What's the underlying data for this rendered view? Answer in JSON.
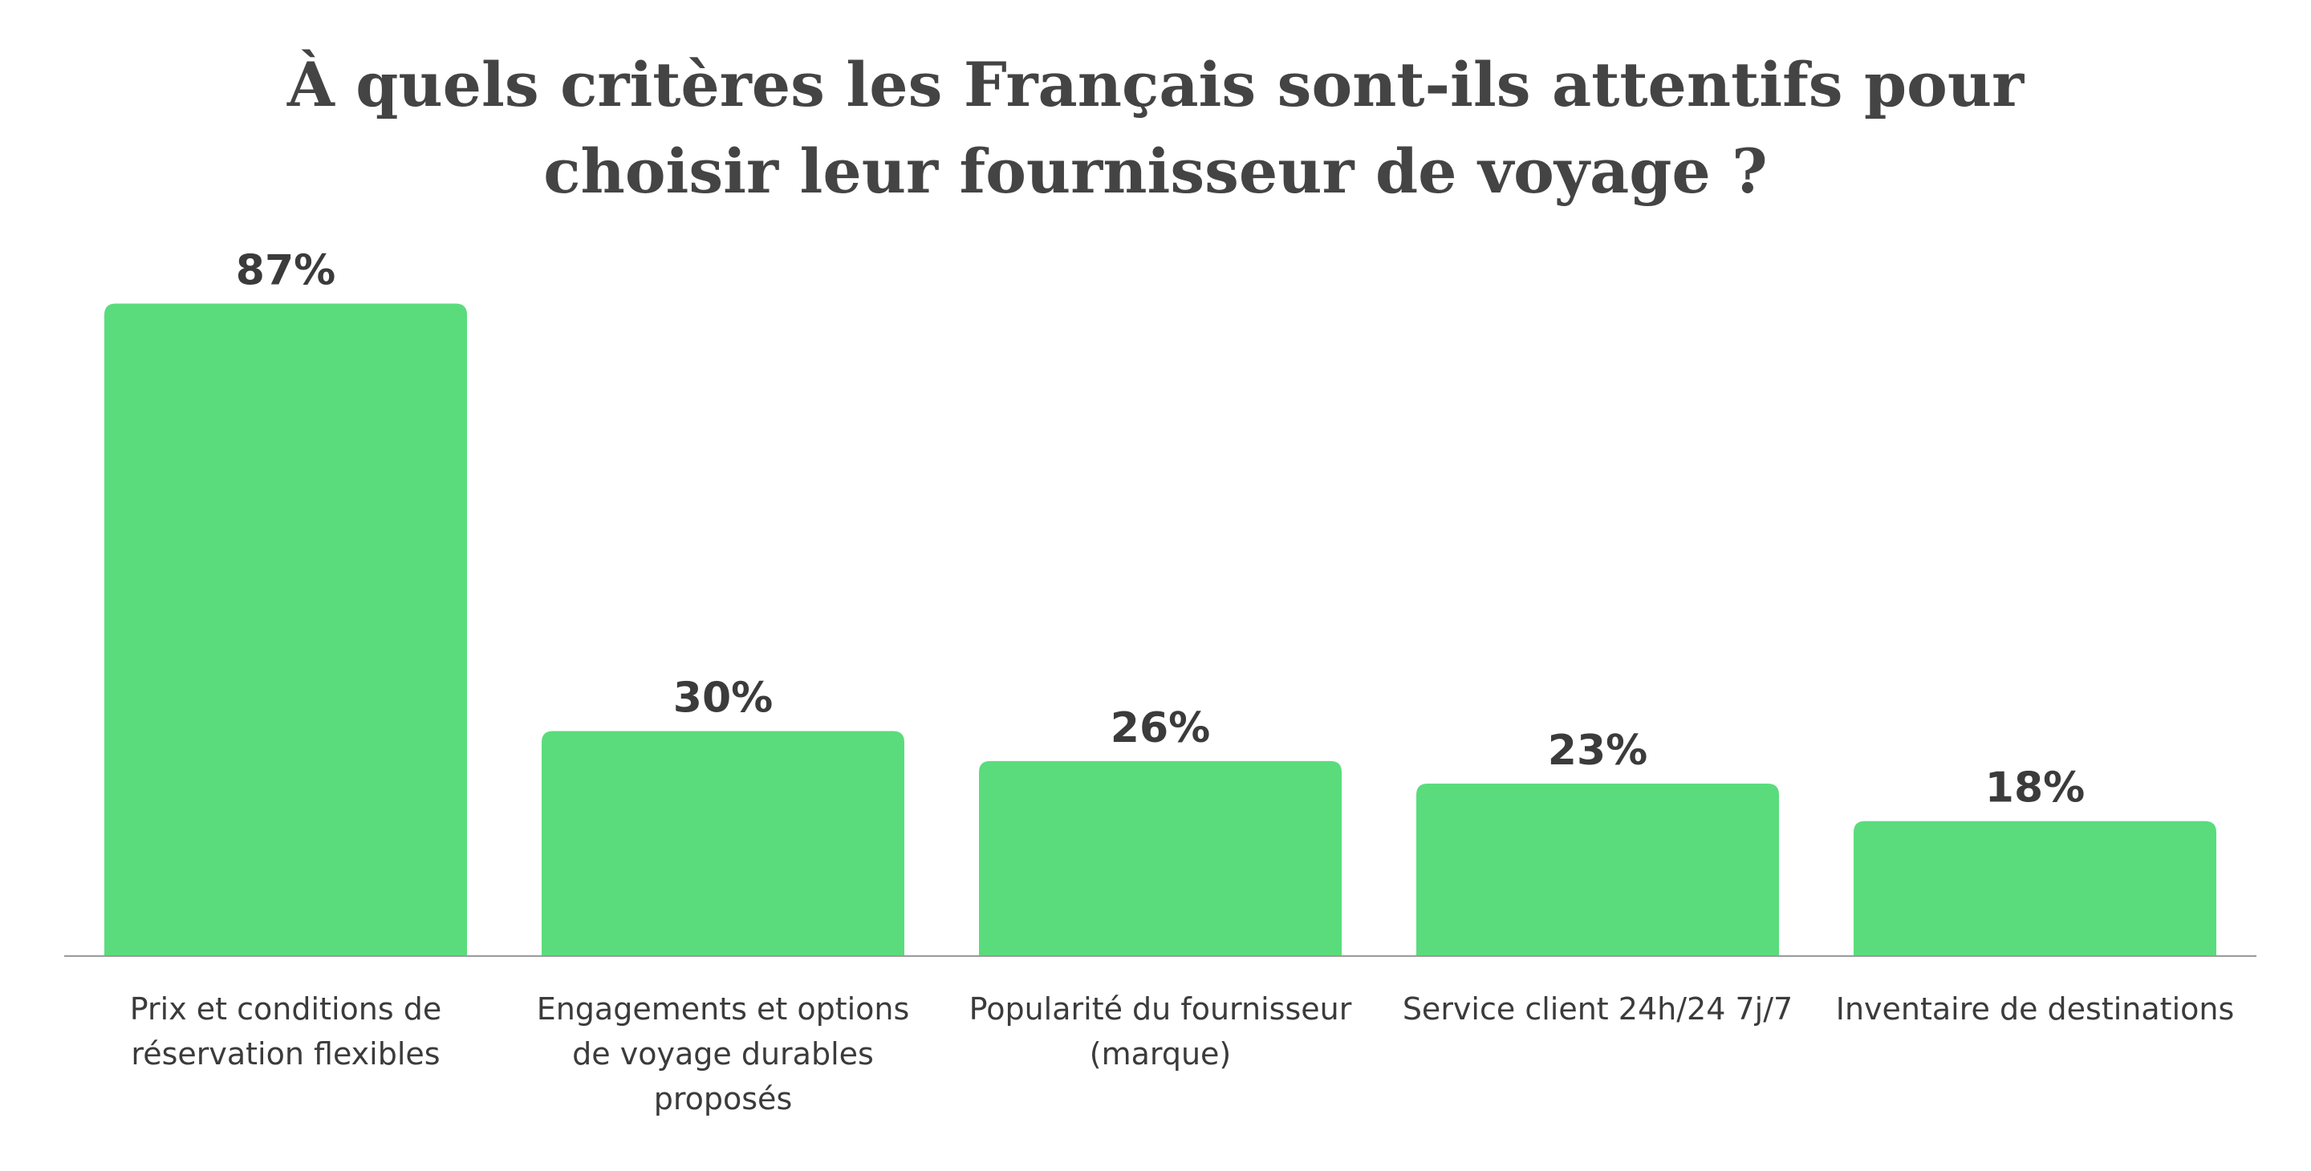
{
  "chart_data": {
    "type": "bar",
    "title_lines": [
      "À quels critères les Français sont-ils attentifs pour",
      "choisir leur fournisseur de voyage ?"
    ],
    "categories": [
      [
        "Prix et conditions de",
        "réservation flexibles"
      ],
      [
        "Engagements et options",
        "de voyage durables",
        "proposés"
      ],
      [
        "Popularité du fournisseur",
        "(marque)"
      ],
      [
        "Service client 24h/24 7j/7"
      ],
      [
        "Inventaire de destinations"
      ]
    ],
    "values": [
      87,
      30,
      26,
      23,
      18
    ],
    "value_labels": [
      "87%",
      "30%",
      "26%",
      "23%",
      "18%"
    ],
    "ylim": [
      0,
      100
    ],
    "grid": false,
    "bar_color": "#5adc7c",
    "text_color": "#444444",
    "axis_color": "#9a9a9a"
  }
}
